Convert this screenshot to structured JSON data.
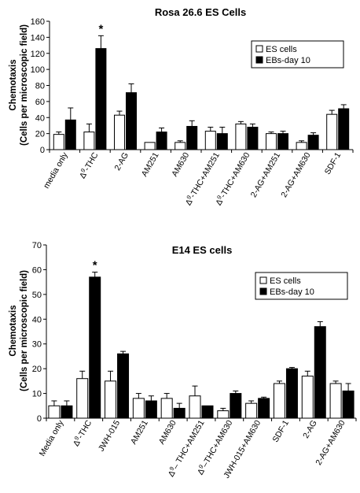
{
  "chart_data": [
    {
      "type": "bar",
      "title": "Rosa 26.6 ES  Cells",
      "ylabel": "Chemotaxis\n(Cells per microscopic field)",
      "xlabel": "",
      "ylim": [
        0,
        160
      ],
      "yticks": [
        0,
        20,
        40,
        60,
        80,
        100,
        120,
        140,
        160
      ],
      "grid": false,
      "legend_position": "top-right",
      "categories": [
        "media only",
        "Δ9-THC",
        "2-AG",
        "AM251",
        "AM630",
        "Δ9-THC+AM251",
        "Δ9-THC+AM630",
        "2-AG+AM251",
        "2-AG+AM630",
        "SDF-1"
      ],
      "series": [
        {
          "name": "ES cells",
          "color": "#ffffff",
          "values": [
            19,
            22,
            43,
            9,
            9,
            23,
            32,
            20,
            9,
            44
          ],
          "errors": [
            3,
            10,
            5,
            0,
            2,
            5,
            3,
            2,
            2,
            5
          ]
        },
        {
          "name": "EBs-day 10",
          "color": "#000000",
          "values": [
            37,
            126,
            71,
            22,
            29,
            20,
            28,
            20,
            18,
            51
          ],
          "errors": [
            15,
            16,
            11,
            5,
            7,
            8,
            4,
            3,
            3,
            5
          ]
        }
      ],
      "annotations": [
        {
          "text": "*",
          "category": "Δ9-THC"
        }
      ]
    },
    {
      "type": "bar",
      "title": "E14 ES cells",
      "ylabel": "Chemotaxis\n(Cells per microscopic field)",
      "xlabel": "",
      "ylim": [
        0,
        70
      ],
      "yticks": [
        0,
        10,
        20,
        30,
        40,
        50,
        60,
        70
      ],
      "grid": false,
      "legend_position": "top-right",
      "categories": [
        "Media only",
        "Δ9-THC",
        "JWH-015",
        "AM251",
        "AM630",
        "Δ9– THC+AM251",
        "Δ9–THC+AM630",
        "JWH-015+AM630",
        "SDF-1",
        "2-AG",
        "2-AG+AM630"
      ],
      "series": [
        {
          "name": "ES cells",
          "color": "#ffffff",
          "values": [
            5,
            16,
            15,
            8,
            8,
            9,
            3,
            6,
            14,
            17,
            14
          ],
          "errors": [
            2,
            3,
            4,
            2,
            2,
            4,
            1,
            1,
            1,
            2,
            1
          ]
        },
        {
          "name": "EBs-day 10",
          "color": "#000000",
          "values": [
            5,
            57,
            26,
            7,
            4,
            5,
            10,
            8,
            20,
            37,
            11
          ],
          "errors": [
            2,
            2,
            1,
            2,
            2,
            0,
            1,
            0.5,
            0.5,
            2,
            3
          ]
        }
      ],
      "annotations": [
        {
          "text": "*",
          "category": "Δ9-THC"
        }
      ]
    }
  ]
}
